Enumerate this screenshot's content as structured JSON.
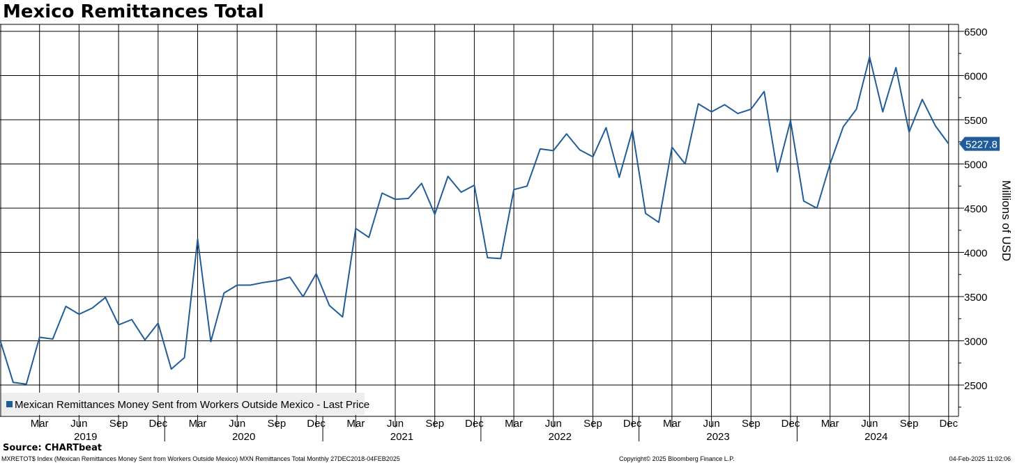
{
  "title": "Mexico Remittances Total",
  "source": "Source: CHARTbeat",
  "footer": {
    "description": "MXRETOT$ Index (Mexican Remittances Money Sent from Workers Outside Mexico) MXN Remittances Total  Monthly 27DEC2018-04FEB2025",
    "copyright": "Copyright© 2025 Bloomberg Finance L.P.",
    "timestamp": "04-Feb-2025 11:02:06"
  },
  "colors": {
    "line": "#1f5c99",
    "grid": "#000000",
    "legend_bg": "#eeeeee"
  },
  "chart_data": {
    "type": "line",
    "ylabel": "Millions of USD",
    "ylim": [
      2250,
      6600
    ],
    "yticks": [
      2500,
      3000,
      3500,
      4000,
      4500,
      5000,
      5500,
      6000,
      6500
    ],
    "month_ticks": [
      "Mar",
      "Jun",
      "Sep",
      "Dec",
      "Mar",
      "Jun",
      "Sep",
      "Dec",
      "Mar",
      "Jun",
      "Sep",
      "Dec",
      "Mar",
      "Jun",
      "Sep",
      "Dec",
      "Mar",
      "Jun",
      "Sep",
      "Dec",
      "Mar",
      "Jun",
      "Sep",
      "Dec"
    ],
    "year_labels": [
      "2019",
      "2020",
      "2021",
      "2022",
      "2023",
      "2024"
    ],
    "last_value_label": "5227.8",
    "legend": "Mexican Remittances Money Sent from Workers Outside Mexico - Last Price",
    "series": [
      {
        "name": "Mexican Remittances Money Sent from Workers Outside Mexico - Last Price",
        "x": [
          "2018-12",
          "2019-01",
          "2019-02",
          "2019-03",
          "2019-04",
          "2019-05",
          "2019-06",
          "2019-07",
          "2019-08",
          "2019-09",
          "2019-10",
          "2019-11",
          "2019-12",
          "2020-01",
          "2020-02",
          "2020-03",
          "2020-04",
          "2020-05",
          "2020-06",
          "2020-07",
          "2020-08",
          "2020-09",
          "2020-10",
          "2020-11",
          "2020-12",
          "2021-01",
          "2021-02",
          "2021-03",
          "2021-04",
          "2021-05",
          "2021-06",
          "2021-07",
          "2021-08",
          "2021-09",
          "2021-10",
          "2021-11",
          "2021-12",
          "2022-01",
          "2022-02",
          "2022-03",
          "2022-04",
          "2022-05",
          "2022-06",
          "2022-07",
          "2022-08",
          "2022-09",
          "2022-10",
          "2022-11",
          "2022-12",
          "2023-01",
          "2023-02",
          "2023-03",
          "2023-04",
          "2023-05",
          "2023-06",
          "2023-07",
          "2023-08",
          "2023-09",
          "2023-10",
          "2023-11",
          "2023-12",
          "2024-01",
          "2024-02",
          "2024-03",
          "2024-04",
          "2024-05",
          "2024-06",
          "2024-07",
          "2024-08",
          "2024-09",
          "2024-10",
          "2024-11",
          "2024-12"
        ],
        "values": [
          3010,
          2530,
          2510,
          3040,
          3020,
          3390,
          3300,
          3370,
          3490,
          3180,
          3240,
          3010,
          3200,
          2680,
          2810,
          4150,
          2990,
          3540,
          3630,
          3630,
          3660,
          3680,
          3720,
          3500,
          3760,
          3400,
          3270,
          4270,
          4170,
          4670,
          4600,
          4610,
          4780,
          4430,
          4860,
          4680,
          4760,
          3940,
          3930,
          4710,
          4750,
          5170,
          5150,
          5340,
          5160,
          5080,
          5410,
          4850,
          5380,
          4440,
          4340,
          5190,
          5000,
          5680,
          5590,
          5670,
          5570,
          5620,
          5820,
          4910,
          5490,
          4580,
          4500,
          5000,
          5420,
          5620,
          6210,
          5590,
          6090,
          5360,
          5730,
          5430,
          5227.8
        ]
      }
    ]
  }
}
